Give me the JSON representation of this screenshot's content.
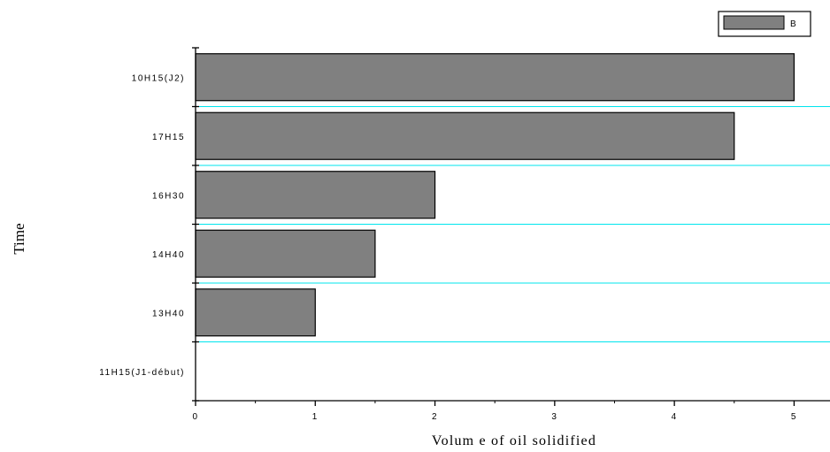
{
  "chart_data": {
    "type": "bar",
    "orientation": "horizontal",
    "categories": [
      "11H15(J1-début)",
      "13H40",
      "14H40",
      "16H30",
      "17H15",
      "10H15(J2)"
    ],
    "series": [
      {
        "name": "B",
        "values": [
          0,
          1,
          1.5,
          2,
          4.5,
          5
        ],
        "color": "#808080"
      }
    ],
    "xlabel": "Volum e of oil solidified",
    "ylabel": "Time",
    "xlim": [
      0,
      5.3
    ],
    "xticks": [
      0,
      1,
      2,
      3,
      4,
      5
    ],
    "grid": "horizontal",
    "grid_color": "#00e5ee",
    "legend_position": "top-right"
  }
}
